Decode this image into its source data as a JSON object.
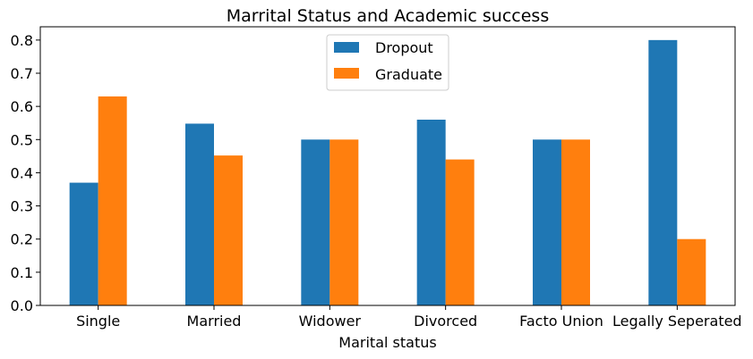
{
  "chart_data": {
    "type": "bar",
    "title": "Marrital Status and Academic success",
    "xlabel": "Marital status",
    "ylabel": "",
    "categories": [
      "Single",
      "Married",
      "Widower",
      "Divorced",
      "Facto Union",
      "Legally Seperated"
    ],
    "series": [
      {
        "name": "Dropout",
        "color": "#1f77b4",
        "values": [
          0.37,
          0.548,
          0.5,
          0.56,
          0.5,
          0.8
        ]
      },
      {
        "name": "Graduate",
        "color": "#ff7f0e",
        "values": [
          0.63,
          0.452,
          0.5,
          0.44,
          0.5,
          0.2
        ]
      }
    ],
    "yticks": [
      "0.0",
      "0.1",
      "0.2",
      "0.3",
      "0.4",
      "0.5",
      "0.6",
      "0.7",
      "0.8"
    ],
    "ylim": [
      0,
      0.84
    ],
    "grid": false,
    "legend": "upper-center"
  }
}
